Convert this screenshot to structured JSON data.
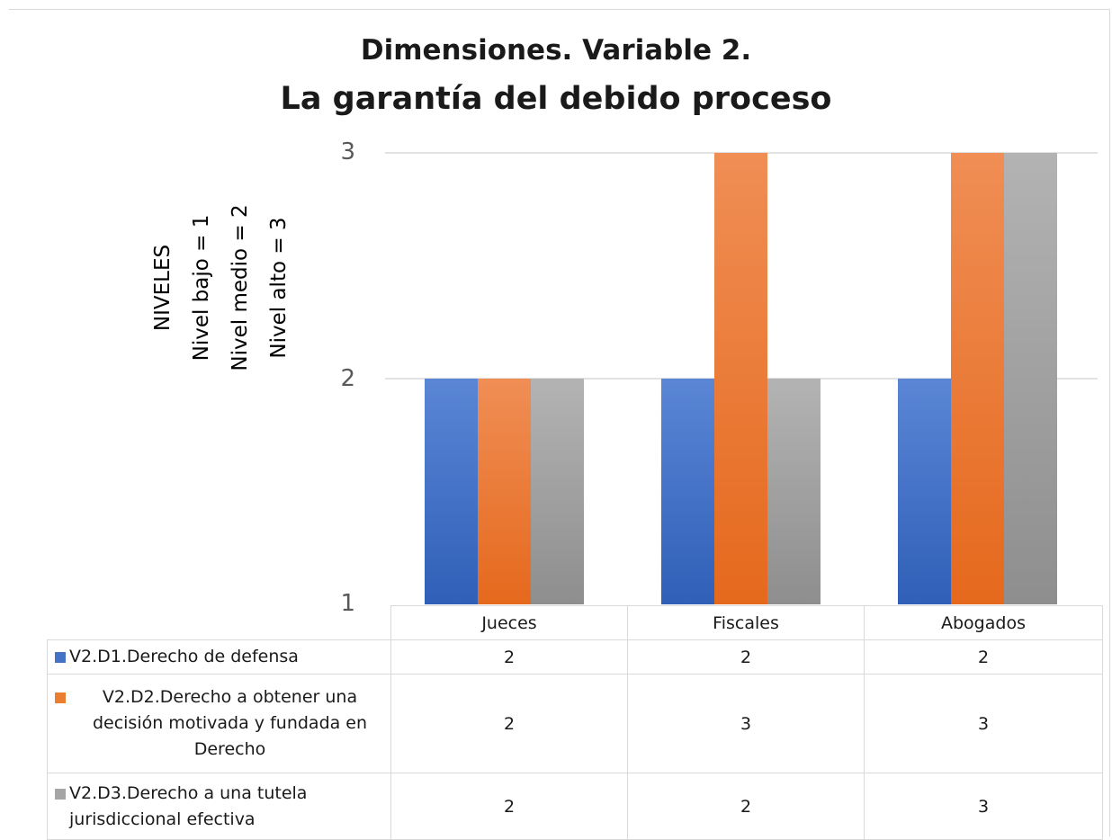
{
  "chart_data": {
    "type": "bar",
    "title": "Dimensiones. Variable 2.",
    "subtitle": "La garantía del debido proceso",
    "ylabel_lines": [
      "NIVELES",
      "Nivel bajo = 1",
      "Nivel medio = 2",
      "Nivel alto = 3"
    ],
    "categories": [
      "Jueces",
      "Fiscales",
      "Abogados"
    ],
    "ylim": [
      1,
      3
    ],
    "yticks": [
      "1",
      "2",
      "3"
    ],
    "grid": true,
    "legend": "data-table",
    "series": [
      {
        "name": "V2.D1.Derecho de defensa",
        "name_lines": [
          "V2.D1.Derecho de defensa"
        ],
        "color": "#4472c4",
        "values": [
          2,
          2,
          2
        ]
      },
      {
        "name": "V2.D2.Derecho a obtener una decisión motivada y fundada en Derecho",
        "name_lines": [
          "V2.D2.Derecho a obtener una",
          "decisión motivada y fundada en",
          "Derecho"
        ],
        "color": "#ed7d31",
        "values": [
          2,
          3,
          3
        ]
      },
      {
        "name": "V2.D3.Derecho a una tutela jurisdiccional efectiva",
        "name_lines": [
          "V2.D3.Derecho a una tutela",
          "jurisdiccional efectiva"
        ],
        "color": "#a5a5a5",
        "values": [
          2,
          2,
          3
        ]
      }
    ],
    "table_values": [
      [
        "2",
        "2",
        "2"
      ],
      [
        "2",
        "3",
        "3"
      ],
      [
        "2",
        "2",
        "3"
      ]
    ]
  }
}
